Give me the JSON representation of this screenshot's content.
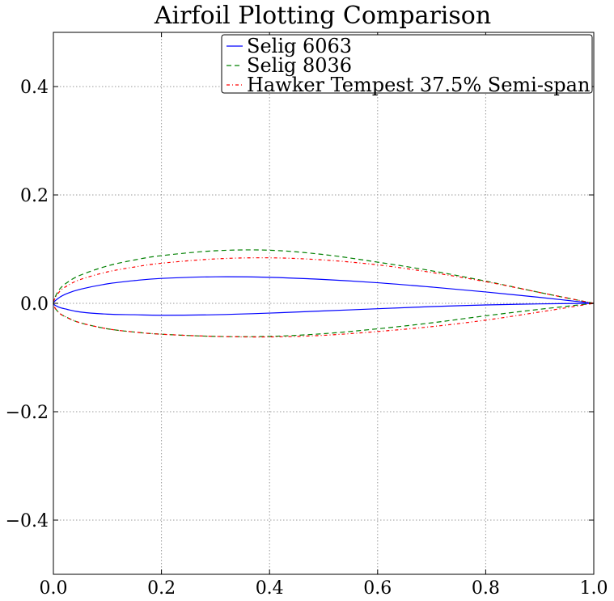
{
  "chart_data": {
    "type": "line",
    "title": "Airfoil Plotting Comparison",
    "xlabel": "",
    "ylabel": "",
    "xlim": [
      0.0,
      1.0
    ],
    "ylim": [
      -0.5,
      0.5
    ],
    "xticks": [
      0.0,
      0.2,
      0.4,
      0.6,
      0.8,
      1.0
    ],
    "xtick_labels": [
      "0.0",
      "0.2",
      "0.4",
      "0.6",
      "0.8",
      "1.0"
    ],
    "yticks": [
      0.4,
      0.2,
      0.0,
      -0.2,
      -0.4
    ],
    "ytick_labels": [
      "0.4",
      "0.2",
      "0.0",
      "−0.2",
      "−0.4"
    ],
    "grid": true,
    "legend_position": "top-right",
    "series": [
      {
        "name": "Selig 6063",
        "color": "#0000ff",
        "linestyle": "solid",
        "x": [
          1.0,
          0.9,
          0.8,
          0.7,
          0.6,
          0.5,
          0.4,
          0.3,
          0.2,
          0.15,
          0.1,
          0.05,
          0.025,
          0.01,
          0.0,
          0.01,
          0.025,
          0.05,
          0.1,
          0.15,
          0.2,
          0.3,
          0.4,
          0.5,
          0.6,
          0.7,
          0.8,
          0.9,
          1.0
        ],
        "y": [
          0.0,
          0.011,
          0.021,
          0.03,
          0.038,
          0.044,
          0.048,
          0.049,
          0.046,
          0.042,
          0.036,
          0.026,
          0.018,
          0.01,
          0.0,
          -0.007,
          -0.011,
          -0.016,
          -0.02,
          -0.021,
          -0.022,
          -0.021,
          -0.018,
          -0.014,
          -0.01,
          -0.006,
          -0.003,
          -0.001,
          0.0
        ]
      },
      {
        "name": "Selig 8036",
        "color": "#008000",
        "linestyle": "dashed",
        "x": [
          1.0,
          0.9,
          0.8,
          0.7,
          0.6,
          0.5,
          0.4,
          0.3,
          0.2,
          0.15,
          0.1,
          0.05,
          0.025,
          0.01,
          0.0,
          0.01,
          0.025,
          0.05,
          0.1,
          0.15,
          0.2,
          0.3,
          0.4,
          0.5,
          0.6,
          0.7,
          0.8,
          0.9,
          1.0
        ],
        "y": [
          0.0,
          0.02,
          0.041,
          0.06,
          0.076,
          0.09,
          0.098,
          0.097,
          0.088,
          0.08,
          0.069,
          0.052,
          0.038,
          0.024,
          0.0,
          -0.017,
          -0.026,
          -0.036,
          -0.047,
          -0.053,
          -0.057,
          -0.061,
          -0.061,
          -0.056,
          -0.047,
          -0.036,
          -0.023,
          -0.011,
          0.0
        ]
      },
      {
        "name": "Hawker Tempest 37.5% Semi-span",
        "color": "#ff0000",
        "linestyle": "dashdot",
        "x": [
          1.0,
          0.9,
          0.8,
          0.7,
          0.6,
          0.5,
          0.4,
          0.3,
          0.2,
          0.15,
          0.1,
          0.05,
          0.025,
          0.01,
          0.0,
          0.01,
          0.025,
          0.05,
          0.1,
          0.15,
          0.2,
          0.3,
          0.4,
          0.5,
          0.6,
          0.7,
          0.8,
          0.9,
          1.0
        ],
        "y": [
          0.0,
          0.02,
          0.04,
          0.057,
          0.071,
          0.08,
          0.084,
          0.082,
          0.074,
          0.067,
          0.058,
          0.044,
          0.032,
          0.02,
          0.0,
          -0.017,
          -0.026,
          -0.036,
          -0.047,
          -0.053,
          -0.057,
          -0.061,
          -0.062,
          -0.059,
          -0.052,
          -0.043,
          -0.031,
          -0.016,
          0.0
        ]
      }
    ]
  }
}
